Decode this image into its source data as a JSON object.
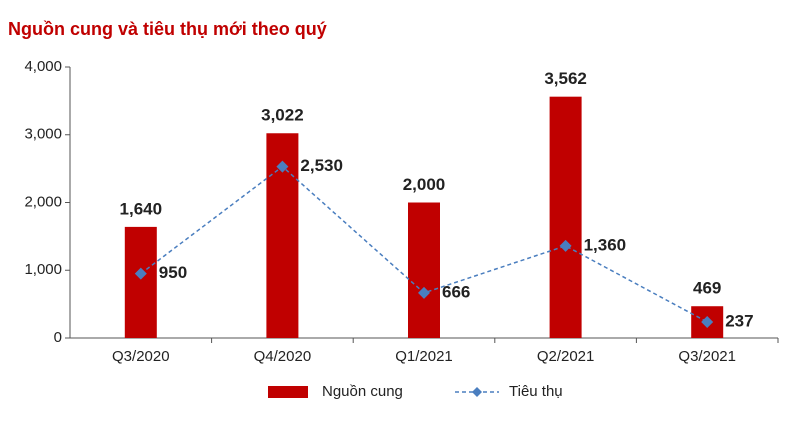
{
  "chart_data": {
    "type": "bar",
    "title": "Nguồn cung và tiêu thụ mới theo quý",
    "categories": [
      "Q3/2020",
      "Q4/2020",
      "Q1/2021",
      "Q2/2021",
      "Q3/2021"
    ],
    "series": [
      {
        "name": "Nguồn cung",
        "type": "bar",
        "color": "#c00000",
        "values": [
          1640,
          3022,
          2000,
          3562,
          469
        ],
        "value_labels": [
          "1,640",
          "3,022",
          "2,000",
          "3,562",
          "469"
        ]
      },
      {
        "name": "Tiêu thụ",
        "type": "line",
        "color": "#4a7ebf",
        "values": [
          950,
          2530,
          666,
          1360,
          237
        ],
        "value_labels": [
          "950",
          "2,530",
          "666",
          "1,360",
          "237"
        ]
      }
    ],
    "ylim": [
      0,
      4000
    ],
    "yticks": [
      0,
      {
        "value": 1000,
        "label": "1,000"
      },
      {
        "value": 2000,
        "label": "2,000"
      },
      {
        "value": 3000,
        "label": "3,000"
      },
      {
        "value": 4000,
        "label": "4,000"
      }
    ],
    "grid": false,
    "legend": "bottom"
  }
}
